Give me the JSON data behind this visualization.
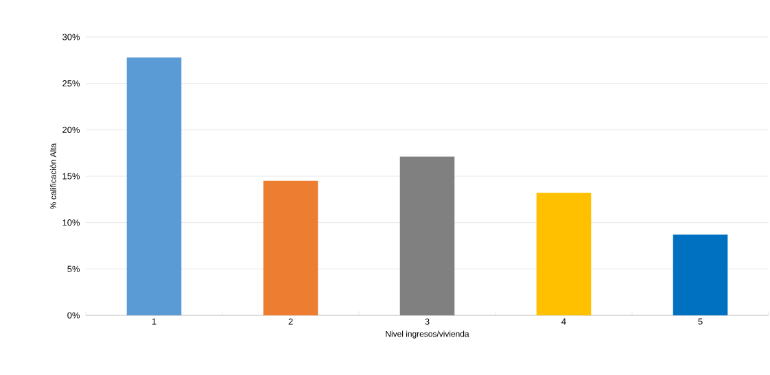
{
  "chart_data": {
    "type": "bar",
    "xlabel": "Nivel ingresos/vivienda",
    "ylabel": "% calificación Alta",
    "categories": [
      "1",
      "2",
      "3",
      "4",
      "5"
    ],
    "values": [
      27.8,
      14.5,
      17.1,
      13.2,
      8.7
    ],
    "colors": [
      "#5b9bd5",
      "#ed7d31",
      "#808080",
      "#ffc000",
      "#0070c0"
    ],
    "ylim": [
      0,
      30
    ],
    "yticks": [
      {
        "value": 0,
        "label": "0%"
      },
      {
        "value": 5,
        "label": "5%"
      },
      {
        "value": 10,
        "label": "10%"
      },
      {
        "value": 15,
        "label": "15%"
      },
      {
        "value": 20,
        "label": "20%"
      },
      {
        "value": 25,
        "label": "25%"
      },
      {
        "value": 30,
        "label": "30%"
      }
    ],
    "grid": "y"
  }
}
